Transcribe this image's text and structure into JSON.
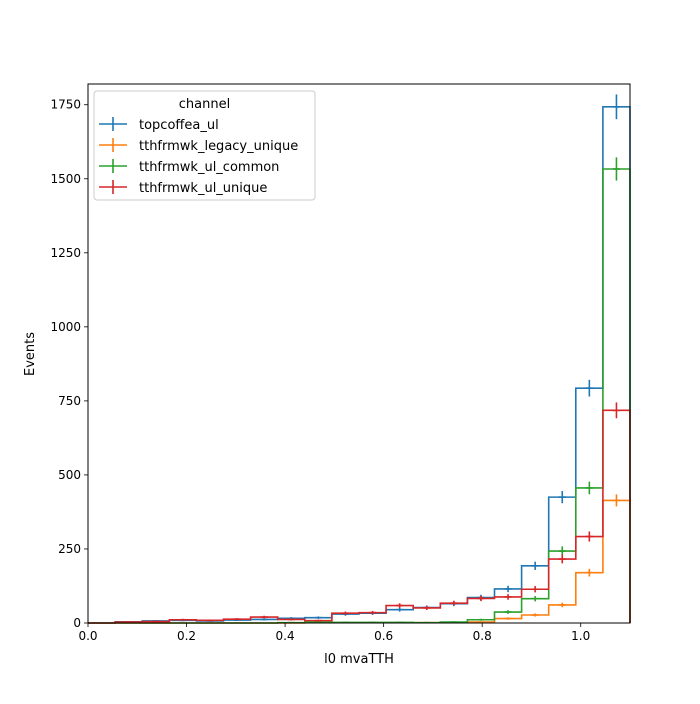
{
  "chart_data": {
    "type": "step-histogram",
    "xlabel": "l0 mvaTTH",
    "ylabel": "Events",
    "xlim": [
      0.0,
      1.1
    ],
    "ylim": [
      0,
      1820
    ],
    "xticks": [
      0.0,
      0.2,
      0.4,
      0.6,
      0.8,
      1.0
    ],
    "xtick_labels": [
      "0.0",
      "0.2",
      "0.4",
      "0.6",
      "0.8",
      "1.0"
    ],
    "yticks": [
      0,
      250,
      500,
      750,
      1000,
      1250,
      1500,
      1750
    ],
    "ytick_labels": [
      "0",
      "250",
      "500",
      "750",
      "1000",
      "1250",
      "1500",
      "1750"
    ],
    "bin_edges": [
      0.0,
      0.055,
      0.11,
      0.165,
      0.22,
      0.275,
      0.33,
      0.385,
      0.44,
      0.495,
      0.55,
      0.605,
      0.66,
      0.715,
      0.77,
      0.825,
      0.88,
      0.935,
      0.99,
      1.045,
      1.1
    ],
    "legend": {
      "title": "channel",
      "placement": "upper left"
    },
    "grid": false,
    "series": [
      {
        "name": "topcoffea_ul",
        "color": "#1f77b4",
        "values": [
          0,
          4,
          7,
          9,
          7,
          10,
          12,
          16,
          18,
          30,
          33,
          45,
          52,
          65,
          86,
          115,
          193,
          425,
          793,
          1743,
          0
        ]
      },
      {
        "name": "tthfrmwk_legacy_unique",
        "color": "#ff7f0e",
        "values": [
          0,
          0,
          0,
          0,
          0,
          0,
          0,
          0,
          1,
          1,
          1,
          1,
          1,
          1,
          3,
          15,
          27,
          61,
          170,
          414,
          0
        ]
      },
      {
        "name": "tthfrmwk_ul_common",
        "color": "#2ca02c",
        "values": [
          0,
          0,
          0,
          0,
          0,
          0,
          0,
          1,
          3,
          2,
          2,
          2,
          1,
          3,
          11,
          37,
          82,
          243,
          456,
          1533,
          0
        ]
      },
      {
        "name": "tthfrmwk_ul_unique",
        "color": "#d62728",
        "values": [
          0,
          3,
          5,
          11,
          9,
          13,
          20,
          12,
          8,
          33,
          35,
          59,
          51,
          67,
          83,
          88,
          114,
          216,
          292,
          718,
          0
        ]
      }
    ]
  }
}
